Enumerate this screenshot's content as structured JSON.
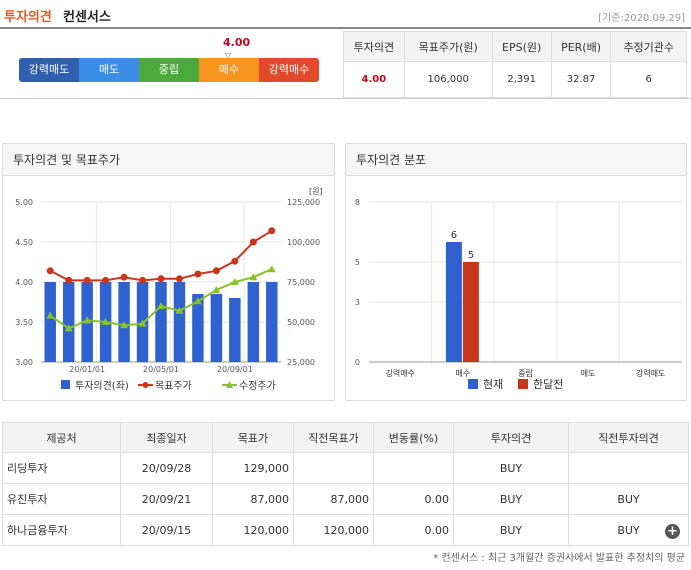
{
  "header": {
    "title": "투자의견",
    "subtitle": "컨센서스",
    "base_date": "[기준:2020.09.29]"
  },
  "scale": {
    "labels": [
      "강력매도",
      "매도",
      "중립",
      "매수",
      "강력매수"
    ],
    "colors": [
      "#2f5fae",
      "#3a8ee6",
      "#4caa3c",
      "#f7941d",
      "#e04a2a"
    ],
    "current_value": "4.00"
  },
  "summary": {
    "headers": [
      "투자의견",
      "목표주가(원)",
      "EPS(원)",
      "PER(배)",
      "추정기관수"
    ],
    "values": [
      "4.00",
      "106,000",
      "2,391",
      "32.87",
      "6"
    ]
  },
  "opinion_chart": {
    "title": "투자의견 및 목표주가",
    "unit": "[원]",
    "chart_data": {
      "type": "bar",
      "y_left_ticks": [
        "5.00",
        "4.50",
        "4.00",
        "3.50",
        "3.00"
      ],
      "y_right_ticks": [
        "125,000",
        "100,000",
        "75,000",
        "50,000",
        "25,000"
      ],
      "x_ticks": [
        "20/01/01",
        "20/05/01",
        "20/09/01"
      ],
      "ylim_left": [
        3,
        5
      ],
      "ylim_right": [
        25000,
        125000
      ],
      "series": [
        {
          "name": "투자의견(좌)",
          "values": [
            4,
            4,
            4,
            4,
            4,
            4,
            4,
            4,
            3.85,
            3.85,
            3.8,
            4,
            4
          ],
          "color": "#2f62d0"
        },
        {
          "name": "목표주가",
          "values": [
            82000,
            76000,
            76000,
            76000,
            78000,
            76000,
            77000,
            77000,
            80000,
            82000,
            88000,
            100000,
            107000
          ],
          "color": "#c8361a"
        },
        {
          "name": "수정주가",
          "values": [
            54000,
            46000,
            51000,
            50000,
            48000,
            49000,
            60000,
            57000,
            63000,
            70000,
            75000,
            78000,
            83000
          ],
          "color": "#88c426"
        }
      ]
    }
  },
  "distribution_chart": {
    "title": "투자의견 분포",
    "chart_data": {
      "type": "bar",
      "categories": [
        "강력매수",
        "매수",
        "중립",
        "매도",
        "강력매도"
      ],
      "y_ticks": [
        "8",
        "5",
        "3",
        "0"
      ],
      "ylim": [
        0,
        8
      ],
      "series": [
        {
          "name": "현재",
          "values": [
            0,
            6,
            0,
            0,
            0
          ],
          "color": "#2f62d0"
        },
        {
          "name": "한달전",
          "values": [
            0,
            5,
            0,
            0,
            0
          ],
          "color": "#c8361a"
        }
      ],
      "data_labels": [
        "6",
        "5"
      ]
    }
  },
  "firms": {
    "headers": [
      "제공처",
      "최종일자",
      "목표가",
      "직전목표가",
      "변동률(%)",
      "투자의견",
      "직전투자의견"
    ],
    "rows": [
      [
        "리딩투자",
        "20/09/28",
        "129,000",
        "",
        "",
        "BUY",
        ""
      ],
      [
        "유진투자",
        "20/09/21",
        "87,000",
        "87,000",
        "0.00",
        "BUY",
        "BUY"
      ],
      [
        "하나금융투자",
        "20/09/15",
        "120,000",
        "120,000",
        "0.00",
        "BUY",
        "BUY"
      ]
    ]
  },
  "footnote": "* 컨센서스 : 최근 3개월간 증권사에서 발표한 추정치의 평균",
  "more_icon": "plus-circle-icon"
}
